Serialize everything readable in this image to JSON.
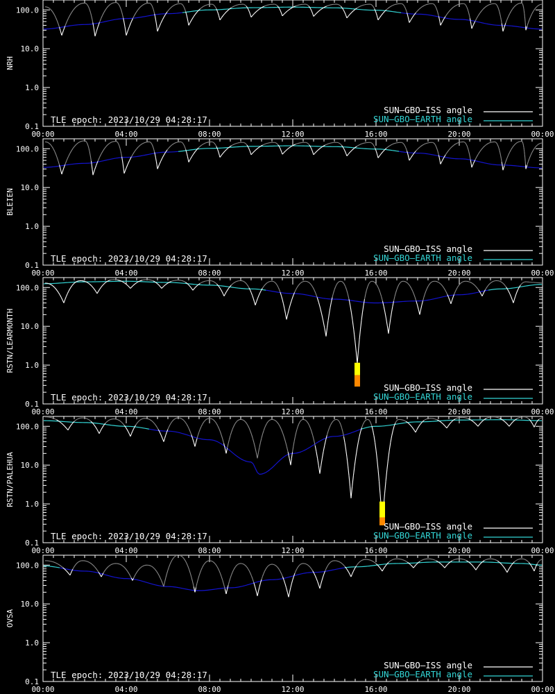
{
  "epoch_label": "TLE epoch: 2023/10/29 04:28:17",
  "legend": {
    "iss": "SUN—GBO—ISS angle",
    "earth": "SUN—GBO—EARTH angle"
  },
  "colors": {
    "background": "#000000",
    "axis": "#ffffff",
    "iss_line": "#ffffff",
    "iss_line_dim": "#8a8a8a",
    "earth_line_day": "#33d6d6",
    "earth_line_night": "#1414d2",
    "marker_yellow": "#ffff00",
    "marker_orange": "#ff8800"
  },
  "chart_data": [
    {
      "type": "line",
      "ylabel": "NRH",
      "yscale": "log",
      "ylim": [
        0.1,
        180
      ],
      "ytick_labels": [
        "0.1",
        "1.0",
        "10.0",
        "100.0"
      ],
      "xlim_hours": [
        0,
        24
      ],
      "xtick_labels": [
        "00:00",
        "04:00",
        "08:00",
        "12:00",
        "16:00",
        "20:00",
        "00:00"
      ],
      "earth_angle": {
        "t": [
          0,
          2,
          4,
          6,
          8,
          10,
          12,
          14,
          16,
          18,
          20,
          22,
          24
        ],
        "v": [
          32,
          42,
          60,
          80,
          100,
          114,
          118,
          113,
          98,
          78,
          57,
          40,
          32
        ]
      },
      "iss_minima": {
        "t": [
          0.9,
          2.5,
          4.0,
          5.5,
          7.0,
          8.5,
          10.0,
          11.5,
          13.0,
          14.6,
          16.1,
          17.6,
          19.1,
          20.6,
          22.1,
          23.2
        ],
        "v": [
          22,
          21,
          22,
          28,
          40,
          55,
          65,
          70,
          68,
          62,
          55,
          47,
          40,
          33,
          28,
          30
        ]
      },
      "iss_peaks": {
        "t": [
          0.1,
          2.0,
          3.5,
          5.1,
          6.6,
          8.1,
          9.6,
          11.1,
          12.6,
          14.1,
          15.7,
          17.2,
          18.7,
          20.2,
          21.7,
          23.0,
          24.0
        ],
        "v": [
          120,
          150,
          155,
          150,
          145,
          140,
          140,
          140,
          140,
          140,
          140,
          145,
          145,
          145,
          145,
          150,
          140
        ]
      },
      "markers": []
    },
    {
      "type": "line",
      "ylabel": "BLEIEN",
      "yscale": "log",
      "ylim": [
        0.1,
        180
      ],
      "ytick_labels": [
        "0.1",
        "1.0",
        "10.0",
        "100.0"
      ],
      "xlim_hours": [
        0,
        24
      ],
      "xtick_labels": [
        "00:00",
        "04:00",
        "08:00",
        "12:00",
        "16:00",
        "20:00",
        "00:00"
      ],
      "earth_angle": {
        "t": [
          0,
          2,
          4,
          6,
          8,
          10,
          12,
          14,
          16,
          18,
          20,
          22,
          24
        ],
        "v": [
          33,
          42,
          60,
          82,
          102,
          115,
          119,
          113,
          98,
          77,
          55,
          38,
          32
        ]
      },
      "iss_minima": {
        "t": [
          0.9,
          2.4,
          3.9,
          5.5,
          7.0,
          8.5,
          10.0,
          11.5,
          13.0,
          14.6,
          16.1,
          17.6,
          19.1,
          20.6,
          22.1,
          23.2
        ],
        "v": [
          22,
          21,
          23,
          30,
          45,
          60,
          70,
          72,
          70,
          65,
          58,
          50,
          40,
          33,
          28,
          30
        ]
      },
      "iss_peaks": {
        "t": [
          0.1,
          2.0,
          3.5,
          5.1,
          6.6,
          8.1,
          9.6,
          11.1,
          12.6,
          14.1,
          15.7,
          17.2,
          18.7,
          20.2,
          21.7,
          23.0,
          24.0
        ],
        "v": [
          150,
          160,
          155,
          150,
          150,
          150,
          145,
          145,
          145,
          145,
          145,
          145,
          145,
          150,
          150,
          155,
          140
        ]
      },
      "markers": []
    },
    {
      "type": "line",
      "ylabel": "RSTN/LEARMONTH",
      "yscale": "log",
      "ylim": [
        0.1,
        180
      ],
      "ytick_labels": [
        "0.1",
        "1.0",
        "10.0",
        "100.0"
      ],
      "xlim_hours": [
        0,
        24
      ],
      "xtick_labels": [
        "00:00",
        "04:00",
        "08:00",
        "12:00",
        "16:00",
        "20:00",
        "00:00"
      ],
      "earth_angle": {
        "t": [
          0,
          2,
          4,
          6,
          8,
          10,
          12,
          14,
          16,
          18,
          20,
          22,
          24
        ],
        "v": [
          125,
          140,
          145,
          135,
          115,
          92,
          70,
          50,
          40,
          45,
          65,
          92,
          120
        ]
      },
      "iss_minima": {
        "t": [
          1.0,
          2.6,
          4.2,
          5.7,
          7.2,
          8.7,
          10.2,
          11.7,
          13.6,
          15.1,
          16.6,
          18.1,
          19.6,
          21.1,
          22.6
        ],
        "v": [
          40,
          70,
          95,
          95,
          85,
          60,
          35,
          15,
          5.5,
          1.1,
          6.5,
          20,
          38,
          60,
          40
        ]
      },
      "iss_peaks": {
        "t": [
          0.1,
          1.8,
          3.4,
          5.0,
          6.5,
          8.0,
          9.5,
          11.0,
          12.6,
          14.3,
          15.8,
          17.3,
          18.8,
          20.3,
          21.8,
          23.2,
          24.0
        ],
        "v": [
          130,
          150,
          160,
          160,
          155,
          150,
          150,
          145,
          145,
          145,
          145,
          145,
          145,
          145,
          150,
          140,
          130
        ]
      },
      "markers": [
        {
          "t": 15.1,
          "top": 1.15,
          "mid": 0.55,
          "bottom": 0.28
        }
      ]
    },
    {
      "type": "line",
      "ylabel": "RSTN/PALEHUA",
      "yscale": "log",
      "ylim": [
        0.1,
        180
      ],
      "ytick_labels": [
        "0.1",
        "1.0",
        "10.0",
        "100.0"
      ],
      "xlim_hours": [
        0,
        24
      ],
      "xtick_labels": [
        "00:00",
        "04:00",
        "08:00",
        "12:00",
        "16:00",
        "20:00",
        "00:00"
      ],
      "earth_angle": {
        "t": [
          0,
          2,
          4,
          6,
          8,
          10,
          10.4,
          12,
          14,
          16,
          18,
          20,
          22,
          24
        ],
        "v": [
          140,
          125,
          100,
          75,
          45,
          12,
          5.8,
          20,
          55,
          100,
          130,
          145,
          148,
          140
        ]
      },
      "iss_minima": {
        "t": [
          1.2,
          2.7,
          4.2,
          5.8,
          7.3,
          8.8,
          10.3,
          11.9,
          13.3,
          14.8,
          16.3,
          17.9,
          19.4,
          20.9,
          22.4,
          23.6
        ],
        "v": [
          80,
          65,
          55,
          40,
          30,
          20,
          15,
          10,
          6,
          1.4,
          0.3,
          70,
          90,
          100,
          100,
          95
        ]
      },
      "iss_peaks": {
        "t": [
          0.1,
          1.9,
          3.4,
          4.9,
          6.5,
          8.0,
          9.5,
          11.0,
          12.5,
          14.1,
          15.6,
          17.1,
          18.6,
          20.1,
          21.6,
          23.1,
          24.0
        ],
        "v": [
          175,
          165,
          155,
          160,
          165,
          160,
          150,
          150,
          150,
          150,
          150,
          150,
          160,
          170,
          175,
          175,
          165
        ]
      },
      "markers": [
        {
          "t": 16.3,
          "top": 1.15,
          "mid": 0.45,
          "bottom": 0.28
        }
      ]
    },
    {
      "type": "line",
      "ylabel": "OVSA",
      "yscale": "log",
      "ylim": [
        0.1,
        180
      ],
      "ytick_labels": [
        "0.1",
        "1.0",
        "10.0",
        "100.0"
      ],
      "xlim_hours": [
        0,
        24
      ],
      "xtick_labels": [
        "00:00",
        "04:00",
        "08:00",
        "12:00",
        "16:00",
        "20:00",
        "00:00"
      ],
      "earth_angle": {
        "t": [
          0,
          2,
          4,
          6,
          7.5,
          9,
          11,
          13,
          15,
          17,
          19,
          21,
          23,
          24
        ],
        "v": [
          95,
          70,
          45,
          28,
          22,
          26,
          42,
          65,
          90,
          110,
          120,
          120,
          110,
          100
        ]
      },
      "iss_minima": {
        "t": [
          1.3,
          2.8,
          4.3,
          5.8,
          7.3,
          8.8,
          10.3,
          11.8,
          13.3,
          14.8,
          16.3,
          17.8,
          19.3,
          20.8,
          22.3,
          23.6
        ],
        "v": [
          55,
          50,
          40,
          28,
          20,
          18,
          16,
          15,
          25,
          50,
          70,
          85,
          85,
          75,
          65,
          70
        ]
      },
      "iss_peaks": {
        "t": [
          0.1,
          1.9,
          3.5,
          5.0,
          6.5,
          8.0,
          9.5,
          11.0,
          12.5,
          14.0,
          15.5,
          17.0,
          18.5,
          20.0,
          21.5,
          23.0,
          24.0
        ],
        "v": [
          130,
          130,
          110,
          100,
          180,
          130,
          110,
          105,
          110,
          130,
          140,
          145,
          145,
          145,
          145,
          145,
          140
        ]
      },
      "markers": []
    }
  ]
}
